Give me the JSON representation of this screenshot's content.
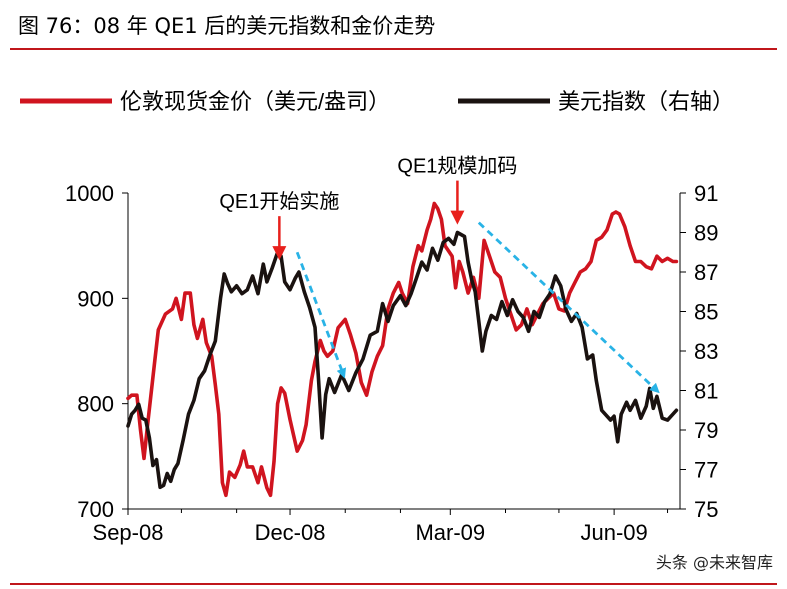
{
  "figure_title": "图 76：08 年 QE1 后的美元指数和金价走势",
  "watermark": "头条 @未来智库",
  "colors": {
    "accent": "#c0161b",
    "gold_series": "#d0141f",
    "dxy_series": "#1a1210",
    "arrow_red": "#e8201c",
    "arrow_blue": "#29b3e6"
  },
  "chart_data": {
    "type": "line",
    "title": "",
    "legend_position": "top",
    "grid": false,
    "x_axis": {
      "tick_labels": [
        "Sep-08",
        "Dec-08",
        "Mar-09",
        "Jun-09"
      ],
      "tick_dates": [
        "2008-09-01",
        "2008-12-01",
        "2009-03-01",
        "2009-06-01"
      ],
      "range": [
        "2008-09-01",
        "2009-07-08"
      ]
    },
    "y_left": {
      "ticks": [
        700,
        800,
        900,
        1000
      ],
      "range": [
        700,
        1000
      ]
    },
    "y_right": {
      "ticks": [
        75,
        77,
        79,
        81,
        83,
        85,
        87,
        89,
        91
      ],
      "range": [
        75,
        91
      ]
    },
    "series": [
      {
        "name": "伦敦现货金价（美元/盎司）",
        "axis": "left",
        "color": "#d0141f",
        "points": [
          [
            "2008-09-01",
            805
          ],
          [
            "2008-09-03",
            808
          ],
          [
            "2008-09-06",
            808
          ],
          [
            "2008-09-08",
            775
          ],
          [
            "2008-09-10",
            748
          ],
          [
            "2008-09-12",
            780
          ],
          [
            "2008-09-16",
            840
          ],
          [
            "2008-09-18",
            870
          ],
          [
            "2008-09-22",
            885
          ],
          [
            "2008-09-26",
            890
          ],
          [
            "2008-09-28",
            900
          ],
          [
            "2008-10-01",
            880
          ],
          [
            "2008-10-03",
            905
          ],
          [
            "2008-10-06",
            905
          ],
          [
            "2008-10-08",
            875
          ],
          [
            "2008-10-10",
            862
          ],
          [
            "2008-10-13",
            880
          ],
          [
            "2008-10-15",
            858
          ],
          [
            "2008-10-18",
            845
          ],
          [
            "2008-10-20",
            818
          ],
          [
            "2008-10-22",
            790
          ],
          [
            "2008-10-24",
            725
          ],
          [
            "2008-10-26",
            713
          ],
          [
            "2008-10-28",
            735
          ],
          [
            "2008-10-31",
            730
          ],
          [
            "2008-11-03",
            742
          ],
          [
            "2008-11-05",
            755
          ],
          [
            "2008-11-07",
            740
          ],
          [
            "2008-11-10",
            740
          ],
          [
            "2008-11-13",
            725
          ],
          [
            "2008-11-15",
            740
          ],
          [
            "2008-11-18",
            720
          ],
          [
            "2008-11-20",
            713
          ],
          [
            "2008-11-22",
            745
          ],
          [
            "2008-11-24",
            800
          ],
          [
            "2008-11-26",
            815
          ],
          [
            "2008-11-28",
            810
          ],
          [
            "2008-12-01",
            785
          ],
          [
            "2008-12-03",
            770
          ],
          [
            "2008-12-05",
            755
          ],
          [
            "2008-12-08",
            765
          ],
          [
            "2008-12-10",
            780
          ],
          [
            "2008-12-13",
            822
          ],
          [
            "2008-12-15",
            840
          ],
          [
            "2008-12-18",
            860
          ],
          [
            "2008-12-20",
            850
          ],
          [
            "2008-12-22",
            845
          ],
          [
            "2008-12-25",
            850
          ],
          [
            "2008-12-28",
            872
          ],
          [
            "2009-01-01",
            880
          ],
          [
            "2009-01-04",
            865
          ],
          [
            "2009-01-07",
            848
          ],
          [
            "2009-01-10",
            820
          ],
          [
            "2009-01-13",
            808
          ],
          [
            "2009-01-16",
            830
          ],
          [
            "2009-01-19",
            845
          ],
          [
            "2009-01-22",
            855
          ],
          [
            "2009-01-25",
            890
          ],
          [
            "2009-01-28",
            905
          ],
          [
            "2009-01-31",
            915
          ],
          [
            "2009-02-02",
            905
          ],
          [
            "2009-02-05",
            895
          ],
          [
            "2009-02-08",
            930
          ],
          [
            "2009-02-11",
            950
          ],
          [
            "2009-02-13",
            945
          ],
          [
            "2009-02-16",
            965
          ],
          [
            "2009-02-18",
            975
          ],
          [
            "2009-02-20",
            990
          ],
          [
            "2009-02-22",
            985
          ],
          [
            "2009-02-24",
            975
          ],
          [
            "2009-02-26",
            950
          ],
          [
            "2009-02-28",
            945
          ],
          [
            "2009-03-02",
            940
          ],
          [
            "2009-03-04",
            910
          ],
          [
            "2009-03-06",
            935
          ],
          [
            "2009-03-08",
            925
          ],
          [
            "2009-03-11",
            905
          ],
          [
            "2009-03-14",
            920
          ],
          [
            "2009-03-17",
            900
          ],
          [
            "2009-03-20",
            955
          ],
          [
            "2009-03-23",
            940
          ],
          [
            "2009-03-26",
            925
          ],
          [
            "2009-03-29",
            920
          ],
          [
            "2009-04-01",
            900
          ],
          [
            "2009-04-04",
            885
          ],
          [
            "2009-04-07",
            870
          ],
          [
            "2009-04-10",
            875
          ],
          [
            "2009-04-13",
            890
          ],
          [
            "2009-04-16",
            875
          ],
          [
            "2009-04-19",
            885
          ],
          [
            "2009-04-22",
            895
          ],
          [
            "2009-04-25",
            900
          ],
          [
            "2009-04-28",
            905
          ],
          [
            "2009-05-01",
            890
          ],
          [
            "2009-05-04",
            888
          ],
          [
            "2009-05-07",
            905
          ],
          [
            "2009-05-10",
            915
          ],
          [
            "2009-05-13",
            925
          ],
          [
            "2009-05-16",
            928
          ],
          [
            "2009-05-19",
            935
          ],
          [
            "2009-05-22",
            955
          ],
          [
            "2009-05-25",
            958
          ],
          [
            "2009-05-28",
            965
          ],
          [
            "2009-05-31",
            980
          ],
          [
            "2009-06-02",
            982
          ],
          [
            "2009-06-04",
            980
          ],
          [
            "2009-06-07",
            968
          ],
          [
            "2009-06-10",
            950
          ],
          [
            "2009-06-13",
            935
          ],
          [
            "2009-06-16",
            935
          ],
          [
            "2009-06-19",
            930
          ],
          [
            "2009-06-22",
            928
          ],
          [
            "2009-06-25",
            940
          ],
          [
            "2009-06-28",
            935
          ],
          [
            "2009-07-01",
            938
          ],
          [
            "2009-07-04",
            935
          ],
          [
            "2009-07-06",
            935
          ]
        ]
      },
      {
        "name": "美元指数（右轴）",
        "axis": "right",
        "color": "#1a1210",
        "points": [
          [
            "2008-09-01",
            79.2
          ],
          [
            "2008-09-03",
            79.8
          ],
          [
            "2008-09-05",
            80.0
          ],
          [
            "2008-09-07",
            80.3
          ],
          [
            "2008-09-09",
            79.6
          ],
          [
            "2008-09-11",
            79.5
          ],
          [
            "2008-09-13",
            78.6
          ],
          [
            "2008-09-15",
            77.2
          ],
          [
            "2008-09-17",
            77.5
          ],
          [
            "2008-09-19",
            76.1
          ],
          [
            "2008-09-21",
            76.2
          ],
          [
            "2008-09-23",
            76.8
          ],
          [
            "2008-09-25",
            76.4
          ],
          [
            "2008-09-27",
            77.0
          ],
          [
            "2008-09-29",
            77.3
          ],
          [
            "2008-10-02",
            78.5
          ],
          [
            "2008-10-05",
            79.8
          ],
          [
            "2008-10-08",
            80.5
          ],
          [
            "2008-10-11",
            81.6
          ],
          [
            "2008-10-14",
            82.0
          ],
          [
            "2008-10-17",
            82.8
          ],
          [
            "2008-10-20",
            83.5
          ],
          [
            "2008-10-23",
            85.7
          ],
          [
            "2008-10-25",
            86.9
          ],
          [
            "2008-10-27",
            86.4
          ],
          [
            "2008-10-29",
            86.0
          ],
          [
            "2008-11-01",
            86.3
          ],
          [
            "2008-11-04",
            85.9
          ],
          [
            "2008-11-07",
            86.1
          ],
          [
            "2008-11-10",
            86.8
          ],
          [
            "2008-11-13",
            85.9
          ],
          [
            "2008-11-16",
            87.4
          ],
          [
            "2008-11-18",
            86.5
          ],
          [
            "2008-11-21",
            87.2
          ],
          [
            "2008-11-24",
            88.0
          ],
          [
            "2008-11-26",
            87.8
          ],
          [
            "2008-11-28",
            86.5
          ],
          [
            "2008-12-01",
            86.1
          ],
          [
            "2008-12-04",
            86.7
          ],
          [
            "2008-12-06",
            87.0
          ],
          [
            "2008-12-09",
            86.0
          ],
          [
            "2008-12-12",
            85.2
          ],
          [
            "2008-12-15",
            84.2
          ],
          [
            "2008-12-17",
            81.6
          ],
          [
            "2008-12-19",
            78.6
          ],
          [
            "2008-12-21",
            80.8
          ],
          [
            "2008-12-23",
            81.6
          ],
          [
            "2008-12-26",
            80.9
          ],
          [
            "2008-12-30",
            81.8
          ],
          [
            "2009-01-03",
            81.0
          ],
          [
            "2009-01-07",
            81.9
          ],
          [
            "2009-01-11",
            82.6
          ],
          [
            "2009-01-15",
            83.8
          ],
          [
            "2009-01-19",
            84.0
          ],
          [
            "2009-01-22",
            85.4
          ],
          [
            "2009-01-25",
            84.5
          ],
          [
            "2009-01-28",
            85.3
          ],
          [
            "2009-02-01",
            85.8
          ],
          [
            "2009-02-04",
            85.3
          ],
          [
            "2009-02-07",
            85.9
          ],
          [
            "2009-02-10",
            86.7
          ],
          [
            "2009-02-13",
            87.5
          ],
          [
            "2009-02-16",
            87.1
          ],
          [
            "2009-02-19",
            88.2
          ],
          [
            "2009-02-22",
            87.6
          ],
          [
            "2009-02-25",
            88.5
          ],
          [
            "2009-02-28",
            88.7
          ],
          [
            "2009-03-03",
            88.4
          ],
          [
            "2009-03-05",
            89.0
          ],
          [
            "2009-03-07",
            88.9
          ],
          [
            "2009-03-09",
            88.8
          ],
          [
            "2009-03-11",
            87.5
          ],
          [
            "2009-03-13",
            86.6
          ],
          [
            "2009-03-15",
            86.0
          ],
          [
            "2009-03-17",
            84.5
          ],
          [
            "2009-03-19",
            83.0
          ],
          [
            "2009-03-21",
            84.0
          ],
          [
            "2009-03-24",
            84.8
          ],
          [
            "2009-03-27",
            84.6
          ],
          [
            "2009-03-30",
            85.5
          ],
          [
            "2009-04-02",
            84.8
          ],
          [
            "2009-04-05",
            85.6
          ],
          [
            "2009-04-08",
            85.0
          ],
          [
            "2009-04-11",
            84.7
          ],
          [
            "2009-04-14",
            84.0
          ],
          [
            "2009-04-17",
            85.0
          ],
          [
            "2009-04-20",
            84.7
          ],
          [
            "2009-04-23",
            85.5
          ],
          [
            "2009-04-26",
            85.9
          ],
          [
            "2009-04-29",
            86.8
          ],
          [
            "2009-05-02",
            86.3
          ],
          [
            "2009-05-05",
            85.1
          ],
          [
            "2009-05-08",
            84.5
          ],
          [
            "2009-05-11",
            84.9
          ],
          [
            "2009-05-14",
            84.2
          ],
          [
            "2009-05-17",
            82.6
          ],
          [
            "2009-05-20",
            82.8
          ],
          [
            "2009-05-22",
            81.5
          ],
          [
            "2009-05-25",
            80.0
          ],
          [
            "2009-05-27",
            79.8
          ],
          [
            "2009-05-30",
            79.5
          ],
          [
            "2009-06-01",
            79.7
          ],
          [
            "2009-06-03",
            78.4
          ],
          [
            "2009-06-05",
            79.8
          ],
          [
            "2009-06-08",
            80.4
          ],
          [
            "2009-06-10",
            80.0
          ],
          [
            "2009-06-13",
            80.5
          ],
          [
            "2009-06-16",
            79.6
          ],
          [
            "2009-06-19",
            80.2
          ],
          [
            "2009-06-21",
            81.1
          ],
          [
            "2009-06-23",
            80.1
          ],
          [
            "2009-06-25",
            80.7
          ],
          [
            "2009-06-28",
            79.6
          ],
          [
            "2009-07-01",
            79.5
          ],
          [
            "2009-07-04",
            79.8
          ],
          [
            "2009-07-06",
            80.0
          ]
        ]
      }
    ],
    "annotations": [
      {
        "text": "QE1开始实施",
        "date": "2008-11-25",
        "axis": "right",
        "value": 87.6,
        "arrow": "down",
        "color": "#e8201c"
      },
      {
        "text": "QE1规模加码",
        "date": "2009-03-05",
        "axis": "right",
        "value": 89.4,
        "arrow": "down",
        "color": "#e8201c"
      }
    ],
    "trend_arrows": [
      {
        "color": "#29b3e6",
        "from": [
          "2008-12-05",
          88.0
        ],
        "to": [
          "2008-12-31",
          81.8
        ]
      },
      {
        "color": "#29b3e6",
        "from": [
          "2009-03-17",
          89.5
        ],
        "to": [
          "2009-06-25",
          81.0
        ]
      }
    ]
  }
}
